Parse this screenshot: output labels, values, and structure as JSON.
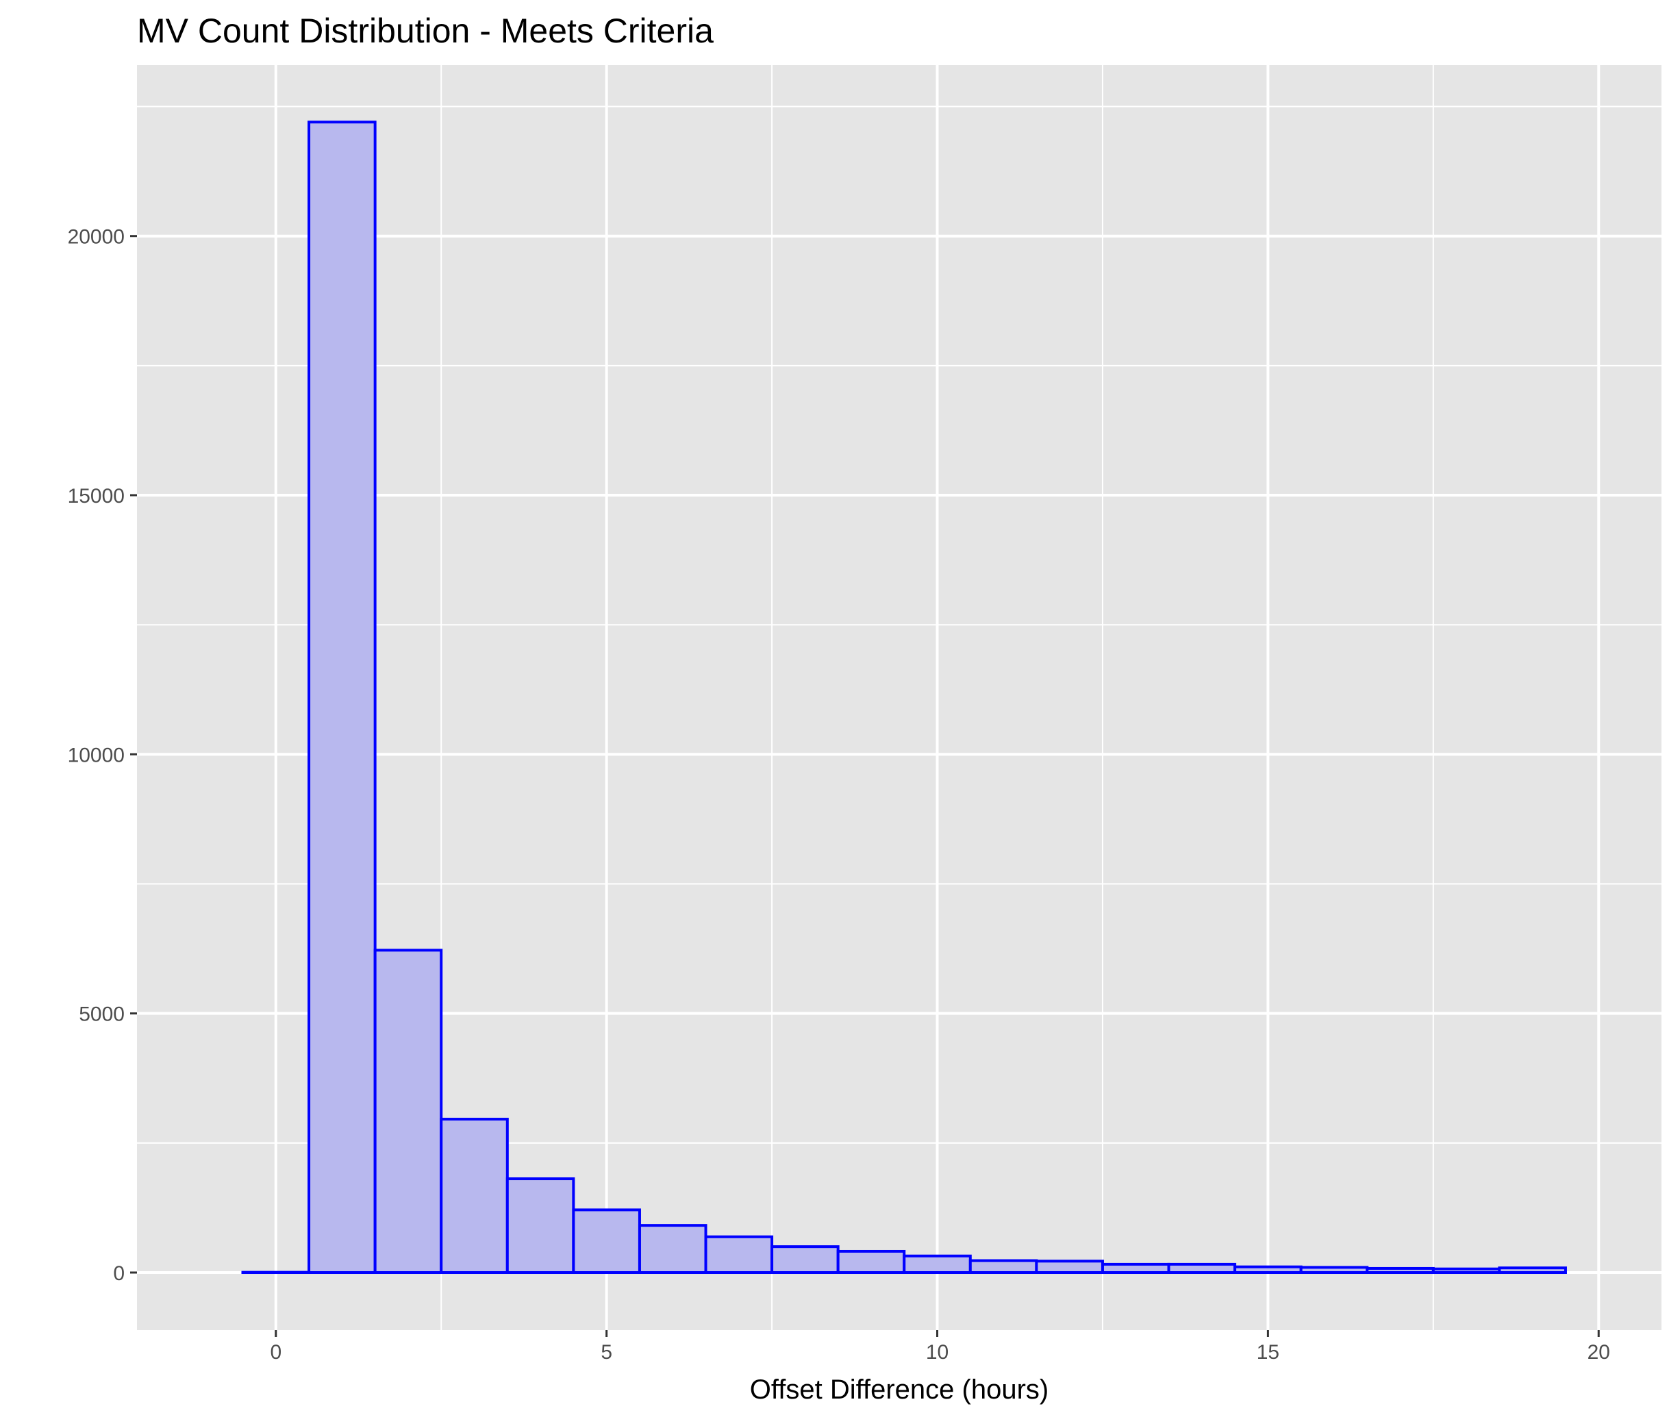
{
  "chart_data": {
    "type": "bar",
    "title": "MV Count Distribution - Meets Criteria",
    "xlabel": "Offset Difference (hours)",
    "ylabel": "",
    "bin_width": 1,
    "x": [
      0,
      1,
      2,
      3,
      4,
      5,
      6,
      7,
      8,
      9,
      10,
      11,
      12,
      13,
      14,
      15,
      16,
      17,
      18,
      19
    ],
    "values": [
      5,
      22200,
      6220,
      2960,
      1810,
      1210,
      910,
      690,
      500,
      410,
      320,
      230,
      220,
      160,
      160,
      110,
      100,
      80,
      70,
      90
    ],
    "xlim": [
      -2.1,
      20.95
    ],
    "ylim": [
      -1110,
      23300
    ],
    "x_ticks": [
      "0",
      "5",
      "10",
      "15",
      "20"
    ],
    "y_ticks": [
      "0",
      "5000",
      "10000",
      "15000",
      "20000"
    ],
    "grid": true,
    "colors": {
      "bar_fill": "#b8b8ee",
      "bar_outline": "#0000ff",
      "panel_background": "#e5e5e5",
      "grid": "#ffffff"
    }
  }
}
